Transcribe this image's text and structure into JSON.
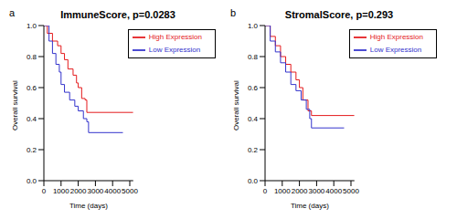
{
  "chart_data": [
    {
      "type": "line",
      "annotation": "a",
      "title": "ImmuneScore, p=0.0283",
      "x_label": "Time (days)",
      "y_label": "Overall survival",
      "xlim": [
        0,
        5200
      ],
      "xticks": [
        0,
        1000,
        2000,
        3000,
        4000,
        5000
      ],
      "ylim": [
        0,
        1
      ],
      "yticks": [
        {
          "value": 0,
          "label": "0.0"
        },
        {
          "value": 0.2,
          "label": "0.2"
        },
        {
          "value": 0.4,
          "label": "0.4"
        },
        {
          "value": 0.6,
          "label": "0.6"
        },
        {
          "value": 0.8,
          "label": "0.8"
        },
        {
          "value": 1,
          "label": "1.0"
        }
      ],
      "grid": false,
      "legend": "upper right",
      "line_style": "step",
      "series": [
        {
          "name": "High Expression",
          "color": "#e41a1c",
          "x": [
            0,
            200,
            500,
            800,
            1000,
            1200,
            1400,
            1700,
            1900,
            2000,
            2200,
            2400,
            2500,
            5200
          ],
          "values": [
            1.0,
            0.95,
            0.9,
            0.87,
            0.82,
            0.78,
            0.72,
            0.68,
            0.63,
            0.6,
            0.53,
            0.52,
            0.44,
            0.44
          ]
        },
        {
          "name": "Low Expression",
          "color": "#3333cc",
          "x": [
            0,
            300,
            500,
            700,
            900,
            1000,
            1200,
            1500,
            1800,
            2000,
            2300,
            2500,
            2600,
            4600
          ],
          "values": [
            1.0,
            0.9,
            0.82,
            0.75,
            0.7,
            0.62,
            0.57,
            0.52,
            0.48,
            0.45,
            0.4,
            0.38,
            0.31,
            0.31
          ]
        }
      ]
    },
    {
      "type": "line",
      "annotation": "b",
      "title": "StromalScore, p=0.293",
      "x_label": "Time (days)",
      "y_label": "Overall survival",
      "xlim": [
        0,
        5200
      ],
      "xticks": [
        0,
        1000,
        2000,
        3000,
        4000,
        5000
      ],
      "ylim": [
        0,
        1
      ],
      "yticks": [
        {
          "value": 0,
          "label": "0.0"
        },
        {
          "value": 0.2,
          "label": "0.2"
        },
        {
          "value": 0.4,
          "label": "0.4"
        },
        {
          "value": 0.6,
          "label": "0.6"
        },
        {
          "value": 0.8,
          "label": "0.8"
        },
        {
          "value": 1,
          "label": "1.0"
        }
      ],
      "grid": false,
      "legend": "upper right",
      "line_style": "step",
      "series": [
        {
          "name": "High Expression",
          "color": "#e41a1c",
          "x": [
            0,
            300,
            600,
            900,
            1200,
            1500,
            1800,
            2000,
            2200,
            2500,
            2700,
            5200
          ],
          "values": [
            1.0,
            0.93,
            0.87,
            0.8,
            0.75,
            0.7,
            0.65,
            0.6,
            0.52,
            0.45,
            0.42,
            0.42
          ]
        },
        {
          "name": "Low Expression",
          "color": "#3333cc",
          "x": [
            0,
            300,
            600,
            900,
            1200,
            1500,
            1800,
            2100,
            2400,
            2600,
            2700,
            4600
          ],
          "values": [
            1.0,
            0.9,
            0.83,
            0.76,
            0.7,
            0.62,
            0.58,
            0.52,
            0.46,
            0.4,
            0.34,
            0.34
          ]
        }
      ]
    }
  ]
}
